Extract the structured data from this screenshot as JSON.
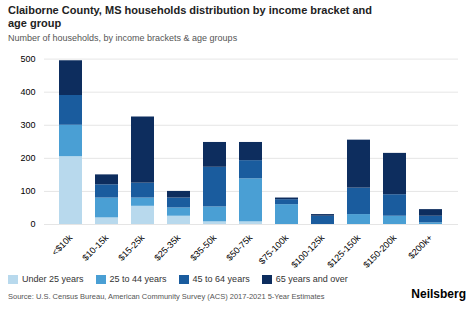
{
  "chart_data": {
    "type": "bar",
    "stacked": true,
    "title": "Claiborne County, MS households distribution by income bracket and\nage group",
    "subtitle": "Number of households, by income brackets & age groups",
    "source": "Source: U.S. Census Bureau, American Community Survey (ACS) 2017-2021 5-Year Estimates",
    "annotations": [
      "Neilsberg"
    ],
    "categories": [
      "<$10k",
      "$10-15k",
      "$15-25k",
      "$25-35k",
      "$35-50k",
      "$50-75k",
      "$75-100k",
      "$100-125k",
      "$125-150k",
      "$150-200k",
      "$200k+"
    ],
    "series": [
      {
        "name": "Under 25 years",
        "color": "#b8d9ed",
        "values": [
          205,
          20,
          55,
          25,
          8,
          8,
          0,
          0,
          0,
          0,
          0
        ]
      },
      {
        "name": "25 to 44 years",
        "color": "#4a9fd4",
        "values": [
          95,
          60,
          25,
          25,
          45,
          130,
          60,
          0,
          30,
          25,
          5
        ]
      },
      {
        "name": "45 to 64 years",
        "color": "#1a5c9e",
        "values": [
          90,
          40,
          45,
          30,
          120,
          55,
          15,
          25,
          80,
          65,
          20
        ]
      },
      {
        "name": "65 years and over",
        "color": "#0d2d5e",
        "values": [
          105,
          30,
          200,
          20,
          75,
          55,
          5,
          5,
          145,
          125,
          20
        ]
      }
    ],
    "ylim": [
      0,
      520
    ],
    "yticks": [
      0,
      100,
      200,
      300,
      400,
      500
    ],
    "grid": true,
    "legend": "bottom"
  }
}
